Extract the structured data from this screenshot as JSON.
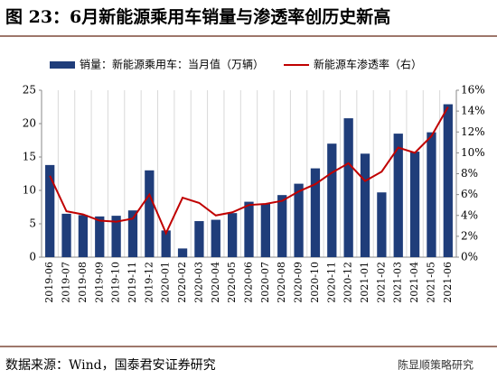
{
  "header": {
    "title": "图 23：6月新能源乘用车销量与渗透率创历史新高"
  },
  "chart_data": {
    "type": "bar",
    "categories": [
      "2019-06",
      "2019-07",
      "2019-08",
      "2019-09",
      "2019-10",
      "2019-11",
      "2019-12",
      "2020-01",
      "2020-02",
      "2020-03",
      "2020-04",
      "2020-05",
      "2020-06",
      "2020-07",
      "2020-08",
      "2020-09",
      "2020-10",
      "2020-11",
      "2020-12",
      "2021-01",
      "2021-02",
      "2021-03",
      "2021-04",
      "2021-05",
      "2021-06"
    ],
    "series": [
      {
        "name": "销量：新能源乘用车：当月值（万辆）",
        "type": "bar",
        "color": "#1f3d7a",
        "values": [
          13.8,
          6.5,
          6.3,
          6.1,
          6.2,
          7.0,
          13.0,
          4.0,
          1.3,
          5.4,
          5.6,
          6.6,
          8.3,
          8.0,
          9.3,
          11.0,
          13.3,
          17.0,
          20.8,
          15.5,
          9.7,
          18.5,
          15.8,
          18.7,
          22.9
        ]
      },
      {
        "name": "新能源车渗透率（右）",
        "type": "line",
        "axis": "y2",
        "color": "#c00000",
        "values": [
          7.8,
          4.4,
          4.1,
          3.5,
          3.4,
          3.7,
          6.0,
          2.3,
          5.7,
          5.2,
          4.0,
          4.3,
          5.0,
          5.1,
          5.4,
          6.3,
          7.0,
          8.1,
          9.0,
          7.3,
          8.2,
          10.5,
          10.0,
          11.6,
          14.4
        ]
      }
    ],
    "ylim": [
      0,
      25
    ],
    "yticks": [
      0,
      5,
      10,
      15,
      20,
      25
    ],
    "y2lim": [
      0,
      16
    ],
    "y2ticks": [
      {
        "value": 0,
        "label": "0%"
      },
      {
        "value": 2,
        "label": "2%"
      },
      {
        "value": 4,
        "label": "4%"
      },
      {
        "value": 6,
        "label": "6%"
      },
      {
        "value": 8,
        "label": "8%"
      },
      {
        "value": 10,
        "label": "10%"
      },
      {
        "value": 12,
        "label": "12%"
      },
      {
        "value": 14,
        "label": "14%"
      },
      {
        "value": 16,
        "label": "16%"
      }
    ],
    "grid": true
  },
  "footer": {
    "source": "数据来源：Wind，国泰君安证券研究",
    "watermark": "陈显顺策略研究"
  }
}
